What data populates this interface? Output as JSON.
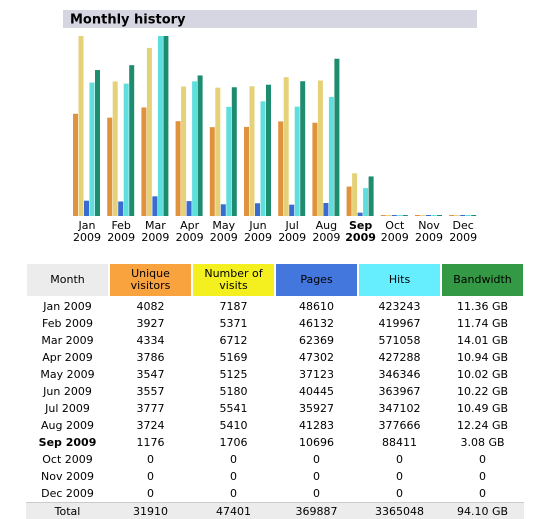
{
  "chart_data": {
    "type": "bar",
    "title": "Monthly history",
    "categories": [
      "Jan 2009",
      "Feb 2009",
      "Mar 2009",
      "Apr 2009",
      "May 2009",
      "Jun 2009",
      "Jul 2009",
      "Aug 2009",
      "Sep 2009",
      "Oct 2009",
      "Nov 2009",
      "Dec 2009"
    ],
    "month_header": "Month",
    "total_label": "Total",
    "shared_scale": [
      [
        0,
        1
      ],
      [
        2,
        3
      ],
      [
        4
      ]
    ],
    "series": [
      {
        "name": "Unique visitors",
        "color": "#e0923c",
        "header_color": "#f9a33f",
        "values": [
          4082,
          3927,
          4334,
          3786,
          3547,
          3557,
          3777,
          3724,
          1176,
          0,
          0,
          0
        ],
        "total": 31910
      },
      {
        "name": "Number of visits",
        "color": "#e4d178",
        "header_color": "#f4f020",
        "values": [
          7187,
          5371,
          6712,
          5169,
          5125,
          5180,
          5541,
          5410,
          1706,
          0,
          0,
          0
        ],
        "total": 47401
      },
      {
        "name": "Pages",
        "color": "#3a6bd0",
        "header_color": "#4477dd",
        "values": [
          48610,
          46132,
          62369,
          47302,
          37123,
          40445,
          35927,
          41283,
          10696,
          0,
          0,
          0
        ],
        "total": 369887
      },
      {
        "name": "Hits",
        "color": "#60dede",
        "header_color": "#66eeff",
        "values": [
          423243,
          419967,
          571058,
          427288,
          346346,
          363967,
          347102,
          377666,
          88411,
          0,
          0,
          0
        ],
        "total": 3365048
      },
      {
        "name": "Bandwidth",
        "color": "#1e8c6e",
        "header_color": "#339944",
        "values": [
          11.36,
          11.74,
          14.01,
          10.94,
          10.02,
          10.22,
          10.49,
          12.24,
          3.08,
          0,
          0,
          0
        ],
        "value_labels": [
          "11.36 GB",
          "11.74 GB",
          "14.01 GB",
          "10.94 GB",
          "10.02 GB",
          "10.22 GB",
          "10.49 GB",
          "12.24 GB",
          "3.08 GB",
          "0",
          "0",
          "0"
        ],
        "total": 94.1,
        "total_label": "94.10 GB"
      }
    ]
  }
}
